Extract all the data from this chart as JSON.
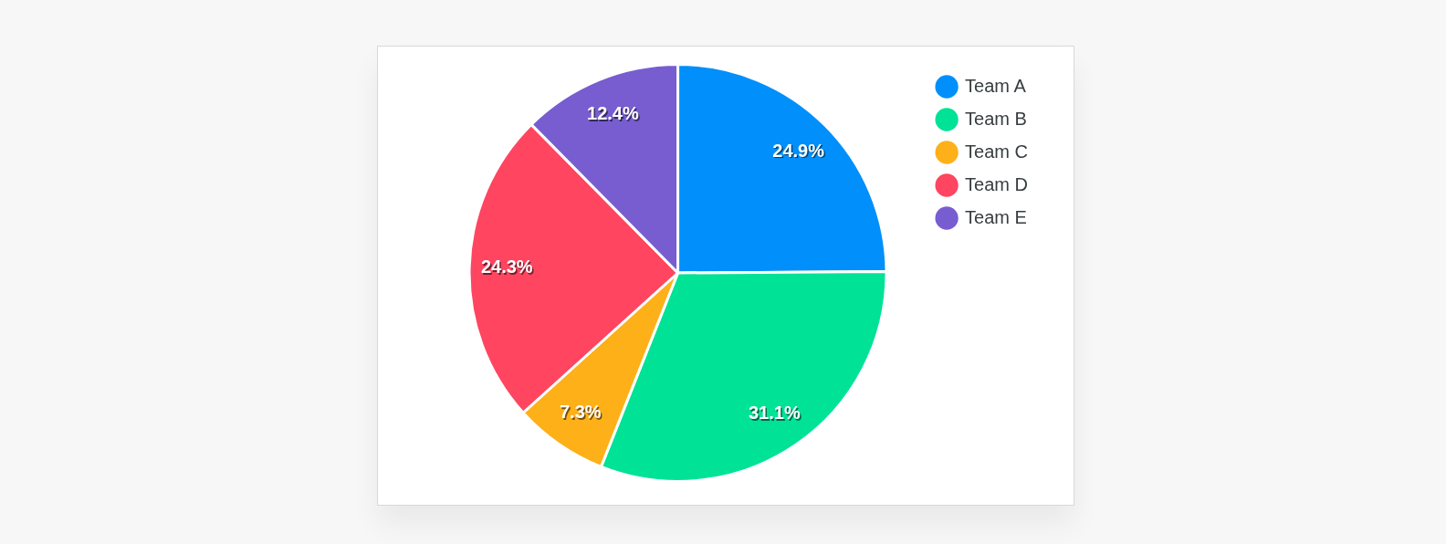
{
  "chart_data": {
    "type": "pie",
    "categories": [
      "Team A",
      "Team B",
      "Team C",
      "Team D",
      "Team E"
    ],
    "values": [
      24.9,
      31.1,
      7.3,
      24.3,
      12.4
    ],
    "colors": [
      "#008ffb",
      "#00e396",
      "#feb019",
      "#ff4560",
      "#775dd0"
    ],
    "legend": "top right",
    "value_labels": [
      "24.9%",
      "31.1%",
      "7.3%",
      "24.3%",
      "12.4%"
    ]
  }
}
